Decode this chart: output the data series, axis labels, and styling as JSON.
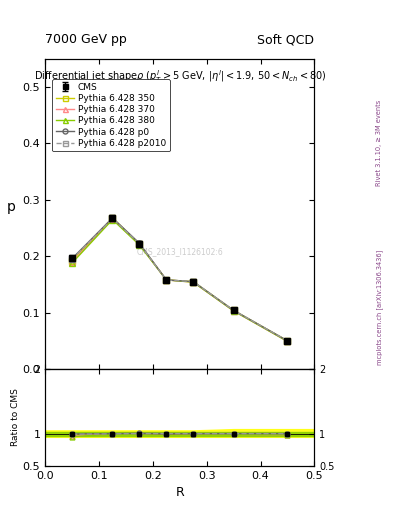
{
  "header_left": "7000 GeV pp",
  "header_right": "Soft QCD",
  "x_values": [
    0.05,
    0.125,
    0.175,
    0.225,
    0.275,
    0.35,
    0.45
  ],
  "cms_y": [
    0.197,
    0.268,
    0.222,
    0.158,
    0.155,
    0.104,
    0.05
  ],
  "cms_yerr": [
    0.005,
    0.006,
    0.005,
    0.004,
    0.004,
    0.003,
    0.002
  ],
  "p350_y": [
    0.192,
    0.268,
    0.222,
    0.158,
    0.155,
    0.104,
    0.05
  ],
  "p370_y": [
    0.19,
    0.266,
    0.221,
    0.158,
    0.154,
    0.103,
    0.049
  ],
  "p380_y": [
    0.188,
    0.265,
    0.22,
    0.158,
    0.154,
    0.103,
    0.049
  ],
  "p0_y": [
    0.196,
    0.268,
    0.223,
    0.158,
    0.155,
    0.104,
    0.05
  ],
  "p2010_y": [
    0.195,
    0.267,
    0.222,
    0.158,
    0.155,
    0.104,
    0.05
  ],
  "ratio_p350": [
    0.975,
    1.0,
    1.0,
    1.0,
    1.0,
    1.0,
    1.0
  ],
  "ratio_p370": [
    0.964,
    0.993,
    0.995,
    1.0,
    0.994,
    0.99,
    0.98
  ],
  "ratio_p380": [
    0.954,
    0.989,
    0.991,
    1.0,
    0.994,
    0.99,
    0.98
  ],
  "ratio_p0": [
    0.995,
    1.0,
    1.004,
    1.0,
    1.0,
    1.0,
    1.0
  ],
  "ratio_p2010": [
    0.99,
    0.996,
    1.0,
    1.0,
    1.0,
    1.0,
    1.0
  ],
  "yellow_band_lo": [
    0.95,
    0.95,
    0.95,
    0.95,
    0.95,
    0.95,
    0.95
  ],
  "yellow_band_hi": [
    1.05,
    1.05,
    1.05,
    1.05,
    1.05,
    1.07,
    1.07
  ],
  "green_band_lo": [
    0.97,
    0.97,
    0.97,
    0.97,
    0.97,
    0.97,
    0.97
  ],
  "green_band_hi": [
    1.03,
    1.03,
    1.03,
    1.03,
    1.03,
    1.03,
    1.03
  ],
  "color_p350": "#cccc00",
  "color_p370": "#ff8888",
  "color_p380": "#88cc00",
  "color_p0": "#666666",
  "color_p2010": "#999999",
  "ylabel": "p",
  "xlabel": "R",
  "ratio_ylabel": "Ratio to CMS",
  "watermark": "CMS_2013_I1126102:6",
  "right_label1": "Rivet 3.1.10, ≥ 3M events",
  "right_label2": "mcplots.cern.ch [arXiv:1306.3436]",
  "xlim": [
    0.0,
    0.5
  ],
  "ylim_main": [
    0.0,
    0.55
  ],
  "ylim_ratio": [
    0.5,
    2.0
  ],
  "yticks_main": [
    0.0,
    0.1,
    0.2,
    0.3,
    0.4,
    0.5
  ],
  "yticks_ratio": [
    0.5,
    1.0,
    2.0
  ],
  "xticks": [
    0.0,
    0.1,
    0.2,
    0.3,
    0.4,
    0.5
  ]
}
